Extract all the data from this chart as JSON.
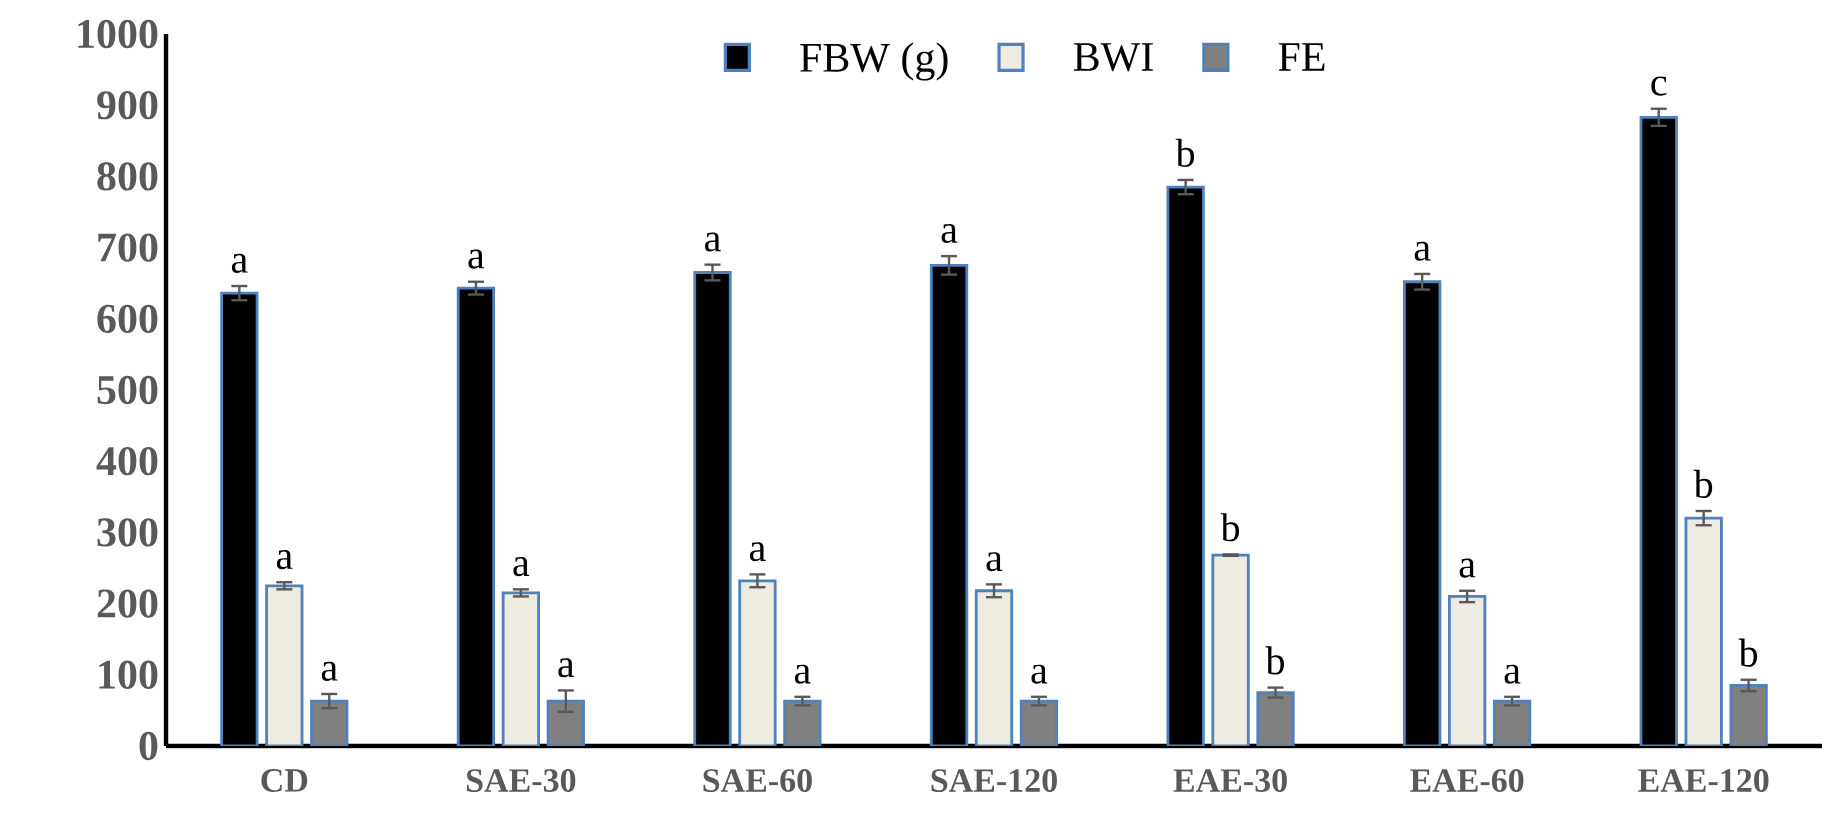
{
  "chart_data": {
    "type": "bar",
    "categories": [
      "CD",
      "SAE-30",
      "SAE-60",
      "SAE-120",
      "EAE-30",
      "EAE-60",
      "EAE-120"
    ],
    "series": [
      {
        "name": "FBW (g)",
        "color": "#000000",
        "values": [
          636,
          643,
          665,
          675,
          785,
          652,
          883
        ],
        "errors": [
          10,
          9,
          11,
          13,
          10,
          11,
          12
        ],
        "value_labels": [
          "a",
          "a",
          "a",
          "a",
          "b",
          "a",
          "c"
        ]
      },
      {
        "name": "BWI",
        "color": "#eeebe1",
        "values": [
          225,
          215,
          232,
          218,
          268,
          210,
          320
        ],
        "errors": [
          5,
          5,
          9,
          9,
          1,
          8,
          10
        ],
        "value_labels": [
          "a",
          "a",
          "a",
          "a",
          "b",
          "a",
          "b"
        ]
      },
      {
        "name": "FE",
        "color": "#808080",
        "values": [
          63,
          63,
          63,
          63,
          75,
          63,
          85
        ],
        "errors": [
          10,
          15,
          6,
          6,
          7,
          6,
          8
        ],
        "value_labels": [
          "a",
          "a",
          "a",
          "a",
          "b",
          "a",
          "b"
        ]
      }
    ],
    "ylim": [
      0,
      1000
    ],
    "yticks": [
      0,
      100,
      200,
      300,
      400,
      500,
      600,
      700,
      800,
      900,
      1000
    ],
    "grid": false,
    "legend": "top"
  }
}
